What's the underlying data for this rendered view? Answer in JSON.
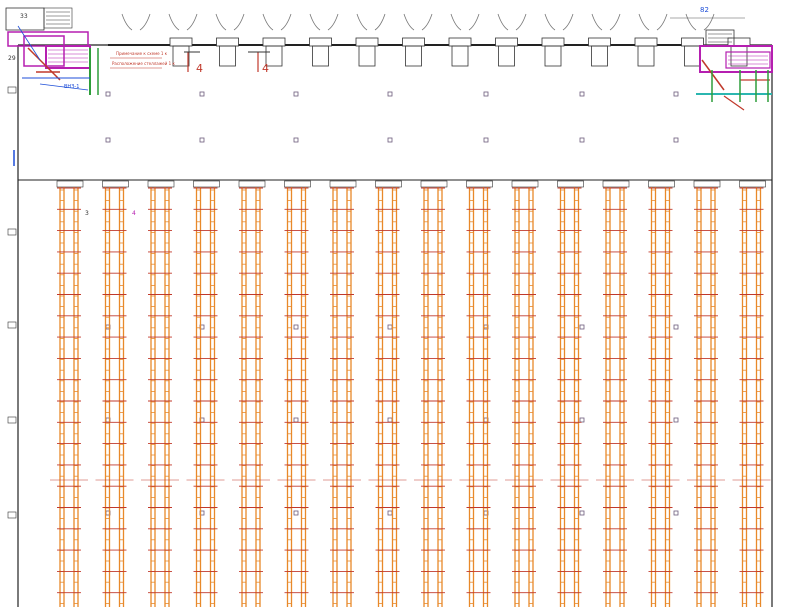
{
  "labels": {
    "top_left_box": "33",
    "left_tag": "29",
    "section_mark_a": "4",
    "section_mark_b": "4",
    "right_tag": "82",
    "rack_label_a": "3",
    "rack_label_b": "4",
    "red_note_1": "Примечание к схеме 1 к",
    "red_note_2": "Расположение стеллажей 1 к",
    "blue_note": "ВНЗ-1",
    "side_marks": [
      "3",
      "3",
      "3",
      "3",
      "3",
      "3"
    ]
  },
  "colors": {
    "rack_orange": "#e8892a",
    "rack_red": "#c0392b",
    "wall": "#222222",
    "magenta": "#b51fb0",
    "blue": "#1d4ed8",
    "green": "#2e9e3a",
    "column_mark": "#6b5b7b"
  }
}
